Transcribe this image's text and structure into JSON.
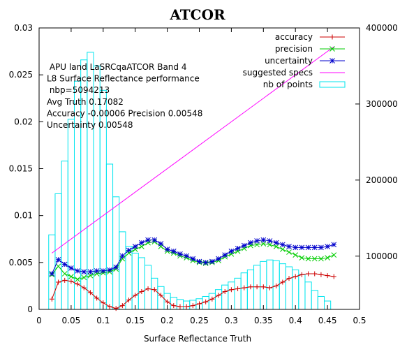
{
  "chart_data": {
    "type": "line",
    "title": "ATCOR",
    "xlabel": "Surface Reflectance Truth",
    "ylabel": "",
    "y2label": "",
    "xlim": [
      0,
      0.5
    ],
    "ylim": [
      0,
      0.03
    ],
    "y2lim": [
      30000,
      400000
    ],
    "xticks": [
      "0",
      "0.05",
      "0.1",
      "0.15",
      "0.2",
      "0.25",
      "0.3",
      "0.35",
      "0.4",
      "0.45",
      "0.5"
    ],
    "yticks": [
      "0",
      "0.005",
      "0.01",
      "0.015",
      "0.02",
      "0.025",
      "0.03"
    ],
    "y2ticks": [
      "100000",
      "200000",
      "300000",
      "400000"
    ],
    "grid": false,
    "legend_position": "top-right",
    "annotation": [
      " APU land LaSRCqaATCOR Band 4",
      "L8 Surface Reflectance performance",
      " nbp=5094213",
      "Avg Truth 0.17082",
      "Accuracy -0.00006 Precision 0.00548",
      "Uncertainty 0.00548"
    ],
    "x": [
      0.02,
      0.03,
      0.04,
      0.05,
      0.06,
      0.07,
      0.08,
      0.09,
      0.1,
      0.11,
      0.12,
      0.13,
      0.14,
      0.15,
      0.16,
      0.17,
      0.18,
      0.19,
      0.2,
      0.21,
      0.22,
      0.23,
      0.24,
      0.25,
      0.26,
      0.27,
      0.28,
      0.29,
      0.3,
      0.31,
      0.32,
      0.33,
      0.34,
      0.35,
      0.36,
      0.37,
      0.38,
      0.39,
      0.4,
      0.41,
      0.42,
      0.43,
      0.44,
      0.45,
      0.46
    ],
    "series": [
      {
        "name": "accuracy",
        "color": "#cc0000",
        "marker": "plus",
        "values": [
          0.0011,
          0.0029,
          0.0031,
          0.003,
          0.0027,
          0.0023,
          0.0018,
          0.0012,
          0.0007,
          0.0003,
          0.0001,
          0.0004,
          0.001,
          0.0015,
          0.0019,
          0.0022,
          0.0021,
          0.0015,
          0.0008,
          0.0004,
          0.0003,
          0.0003,
          0.0004,
          0.0006,
          0.0008,
          0.0011,
          0.0015,
          0.0019,
          0.0021,
          0.0022,
          0.0023,
          0.0024,
          0.0024,
          0.0024,
          0.0023,
          0.0025,
          0.0029,
          0.0033,
          0.0035,
          0.0037,
          0.0038,
          0.0038,
          0.0037,
          0.0036,
          0.0035
        ]
      },
      {
        "name": "precision",
        "color": "#00cc00",
        "marker": "x",
        "values": [
          0.0037,
          0.0046,
          0.0038,
          0.0035,
          0.0032,
          0.0034,
          0.0036,
          0.0038,
          0.0039,
          0.004,
          0.0043,
          0.0054,
          0.006,
          0.0064,
          0.0067,
          0.0071,
          0.0072,
          0.0067,
          0.0062,
          0.006,
          0.0057,
          0.0055,
          0.0052,
          0.005,
          0.0049,
          0.005,
          0.0052,
          0.0056,
          0.0059,
          0.0062,
          0.0065,
          0.0068,
          0.0069,
          0.007,
          0.0069,
          0.0067,
          0.0064,
          0.0061,
          0.0058,
          0.0055,
          0.0054,
          0.0054,
          0.0054,
          0.0055,
          0.0058
        ]
      },
      {
        "name": "uncertainty",
        "color": "#0000cc",
        "marker": "star",
        "values": [
          0.0038,
          0.0053,
          0.0048,
          0.0044,
          0.0041,
          0.004,
          0.004,
          0.0041,
          0.0041,
          0.0042,
          0.0045,
          0.0057,
          0.0063,
          0.0067,
          0.0071,
          0.0074,
          0.0074,
          0.007,
          0.0064,
          0.0062,
          0.0059,
          0.0057,
          0.0054,
          0.0051,
          0.005,
          0.0051,
          0.0054,
          0.0058,
          0.0062,
          0.0065,
          0.0068,
          0.0071,
          0.0073,
          0.0074,
          0.0073,
          0.0071,
          0.0069,
          0.0067,
          0.0066,
          0.0066,
          0.0066,
          0.0066,
          0.0066,
          0.0067,
          0.0069
        ]
      },
      {
        "name": "suggested specs",
        "color": "#ff00ff",
        "marker": "none",
        "x": [
          0.02,
          0.46
        ],
        "values": [
          0.006,
          0.028
        ]
      }
    ],
    "histogram": {
      "name": "nb of points",
      "color": "#00e5ee",
      "axis": "y2",
      "bin_width": 0.01,
      "x": [
        0.02,
        0.03,
        0.04,
        0.05,
        0.06,
        0.07,
        0.08,
        0.09,
        0.1,
        0.11,
        0.12,
        0.13,
        0.14,
        0.15,
        0.16,
        0.17,
        0.18,
        0.19,
        0.2,
        0.21,
        0.22,
        0.23,
        0.24,
        0.25,
        0.26,
        0.27,
        0.28,
        0.29,
        0.3,
        0.31,
        0.32,
        0.33,
        0.34,
        0.35,
        0.36,
        0.37,
        0.38,
        0.39,
        0.4,
        0.41,
        0.42,
        0.43,
        0.44,
        0.45
      ],
      "values": [
        128000,
        182000,
        225000,
        280000,
        330000,
        358000,
        368000,
        350000,
        318000,
        221000,
        178000,
        132000,
        113000,
        104000,
        98000,
        88000,
        71000,
        60000,
        51000,
        46000,
        43000,
        41000,
        42000,
        44000,
        47000,
        51000,
        56000,
        62000,
        66000,
        71000,
        78000,
        82000,
        88000,
        93000,
        95000,
        94000,
        90000,
        86000,
        82000,
        76000,
        66000,
        55000,
        47000,
        41000
      ]
    }
  }
}
